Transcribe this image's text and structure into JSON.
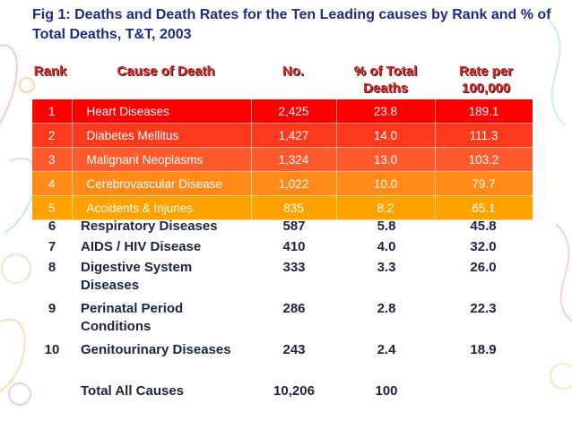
{
  "title": "Fig 1:  Deaths and Death Rates for the Ten Leading causes by Rank and % of Total Deaths, T&T, 2003",
  "headers": {
    "rank": "Rank",
    "cause": "Cause of Death",
    "no": "No.",
    "pct": "% of Total Deaths",
    "rate": "Rate per 100,000"
  },
  "colors": {
    "title": "#1f2a8a",
    "header": "#d22e2e",
    "row1": "#ff0000",
    "row2": "#ff3a1c",
    "row3": "#ff5a2c",
    "row4": "#ff8a18",
    "row5": "#ffa200",
    "text_dark": "#1a2540"
  },
  "colored_rows": [
    {
      "rank": "1",
      "cause": "Heart Diseases",
      "no": "2,425",
      "pct": "23.8",
      "rate": "189.1"
    },
    {
      "rank": "2",
      "cause": "Diabetes Mellitus",
      "no": "1,427",
      "pct": "14.0",
      "rate": "111.3"
    },
    {
      "rank": "3",
      "cause": "Malignant Neoplasms",
      "no": "1,324",
      "pct": "13.0",
      "rate": "103.2"
    },
    {
      "rank": "4",
      "cause": "Cerebrovascular Disease",
      "no": "1,022",
      "pct": "10.0",
      "rate": "79.7"
    },
    {
      "rank": "5",
      "cause": "Accidents & Injuries",
      "no": "835",
      "pct": "8.2",
      "rate": "65.1"
    }
  ],
  "plain_rows": [
    {
      "rank": "6",
      "cause": "Respiratory Diseases",
      "no": "587",
      "pct": "5.8",
      "rate": "45.8"
    },
    {
      "rank": "7",
      "cause": "AIDS / HIV Disease",
      "no": "410",
      "pct": "4.0",
      "rate": "32.0"
    },
    {
      "rank": "8",
      "cause": "Digestive System Diseases",
      "no": "333",
      "pct": "3.3",
      "rate": "26.0"
    },
    {
      "rank": "9",
      "cause": "Perinatal Period Conditions",
      "no": "286",
      "pct": "2.8",
      "rate": "22.3"
    },
    {
      "rank": "10",
      "cause": "Genitourinary Diseases",
      "no": "243",
      "pct": "2.4",
      "rate": "18.9"
    }
  ],
  "total": {
    "rank": "",
    "cause": "Total All Causes",
    "no": "10,206",
    "pct": "100",
    "rate": ""
  }
}
